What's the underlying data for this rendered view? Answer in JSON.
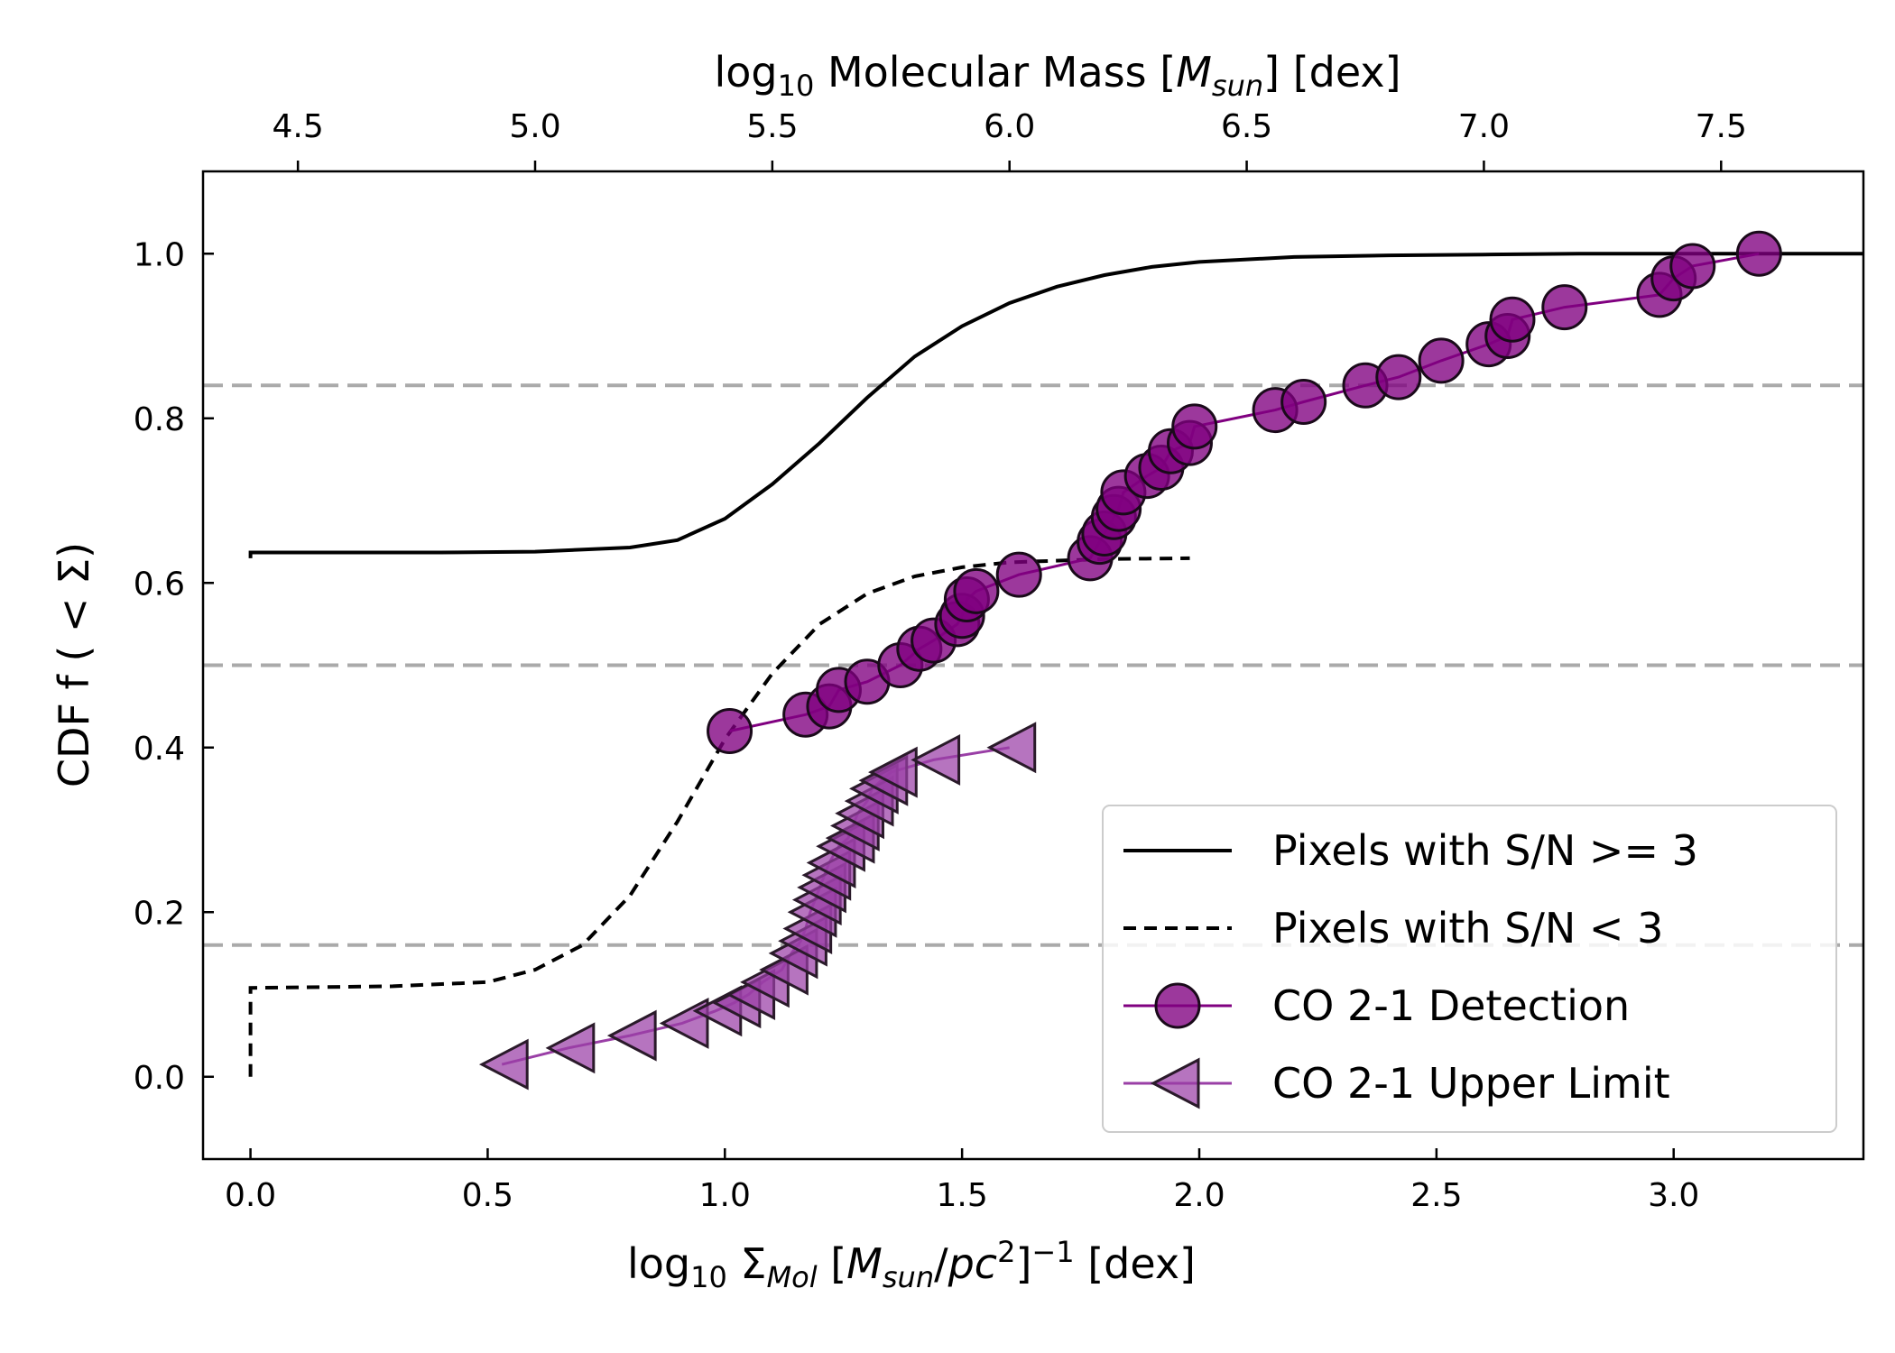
{
  "chart_data": {
    "type": "line",
    "title": "",
    "xlabel": "log₁₀ Σ_Mol [M_sun/pc²]⁻¹ [dex]",
    "ylabel": "CDF f ( < Σ)",
    "xlim": [
      -0.1,
      3.4
    ],
    "ylim": [
      -0.1,
      1.1
    ],
    "x_ticks": [
      0.0,
      0.5,
      1.0,
      1.5,
      2.0,
      2.5,
      3.0
    ],
    "y_ticks": [
      0.0,
      0.2,
      0.4,
      0.6,
      0.8,
      1.0
    ],
    "secondary_xaxis": {
      "label": "log₁₀ Molecular Mass [M_sun] [dex]",
      "ticks": [
        4.5,
        5.0,
        5.5,
        6.0,
        6.5,
        7.0,
        7.5
      ],
      "offset": 4.4
    },
    "reference_lines_y": [
      0.16,
      0.5,
      0.84
    ],
    "grid": false,
    "legend_position": "lower-right",
    "colors": {
      "detection": "#800080",
      "upper_limit": "#9a3fa6",
      "reference": "#aaaaaa",
      "curves": "#000000"
    },
    "series": [
      {
        "name": "Pixels with S/N >= 3",
        "style": "solid",
        "x": [
          0.0,
          0.0,
          0.2,
          0.4,
          0.6,
          0.8,
          0.9,
          1.0,
          1.1,
          1.2,
          1.3,
          1.4,
          1.5,
          1.6,
          1.7,
          1.8,
          1.9,
          2.0,
          2.2,
          2.4,
          2.6,
          2.8,
          3.0,
          3.2,
          3.4
        ],
        "y": [
          0.63,
          0.637,
          0.637,
          0.637,
          0.638,
          0.643,
          0.652,
          0.678,
          0.72,
          0.77,
          0.825,
          0.875,
          0.912,
          0.94,
          0.96,
          0.974,
          0.984,
          0.99,
          0.996,
          0.998,
          0.999,
          1.0,
          1.0,
          1.0,
          1.0
        ]
      },
      {
        "name": "Pixels with S/N < 3",
        "style": "dashed",
        "x": [
          0.0,
          0.0,
          0.3,
          0.5,
          0.6,
          0.7,
          0.8,
          0.9,
          1.0,
          1.1,
          1.2,
          1.3,
          1.4,
          1.5,
          1.6,
          1.8,
          1.98
        ],
        "y": [
          0.0,
          0.108,
          0.11,
          0.115,
          0.13,
          0.16,
          0.22,
          0.31,
          0.41,
          0.49,
          0.55,
          0.587,
          0.608,
          0.619,
          0.625,
          0.629,
          0.63
        ]
      },
      {
        "name": "CO 2-1 Detection",
        "marker": "circle",
        "x": [
          1.01,
          1.17,
          1.22,
          1.24,
          1.3,
          1.37,
          1.41,
          1.44,
          1.49,
          1.5,
          1.51,
          1.53,
          1.62,
          1.77,
          1.79,
          1.8,
          1.82,
          1.83,
          1.84,
          1.89,
          1.92,
          1.94,
          1.98,
          1.99,
          2.16,
          2.22,
          2.35,
          2.42,
          2.51,
          2.61,
          2.65,
          2.66,
          2.77,
          2.97,
          3.0,
          3.04,
          3.18
        ],
        "y": [
          0.42,
          0.44,
          0.45,
          0.47,
          0.48,
          0.5,
          0.52,
          0.53,
          0.55,
          0.56,
          0.58,
          0.59,
          0.61,
          0.63,
          0.65,
          0.66,
          0.68,
          0.69,
          0.71,
          0.73,
          0.74,
          0.76,
          0.77,
          0.79,
          0.81,
          0.82,
          0.84,
          0.85,
          0.87,
          0.89,
          0.9,
          0.92,
          0.935,
          0.95,
          0.97,
          0.985,
          1.0
        ]
      },
      {
        "name": "CO 2-1 Upper Limit",
        "marker": "triangle-left",
        "x": [
          0.53,
          0.67,
          0.8,
          0.91,
          0.98,
          1.02,
          1.05,
          1.08,
          1.12,
          1.14,
          1.16,
          1.17,
          1.18,
          1.19,
          1.2,
          1.21,
          1.22,
          1.24,
          1.26,
          1.27,
          1.28,
          1.3,
          1.31,
          1.33,
          1.35,
          1.44,
          1.6
        ],
        "y": [
          0.015,
          0.035,
          0.05,
          0.065,
          0.08,
          0.09,
          0.1,
          0.115,
          0.13,
          0.15,
          0.165,
          0.18,
          0.2,
          0.215,
          0.23,
          0.245,
          0.26,
          0.28,
          0.29,
          0.305,
          0.32,
          0.335,
          0.35,
          0.36,
          0.37,
          0.385,
          0.4
        ]
      }
    ]
  }
}
